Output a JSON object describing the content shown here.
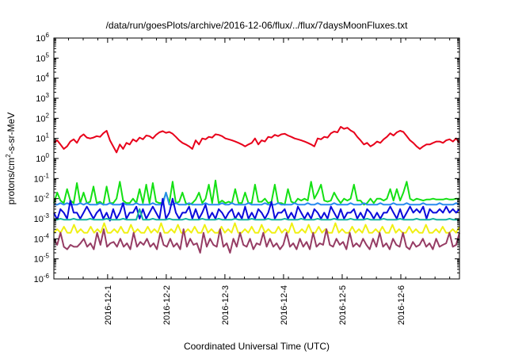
{
  "chart_data": {
    "type": "line",
    "title": "/data/run/goesPlots/archive/2016-12-06/flux/../flux/7daysMoonFluxes.txt",
    "xlabel": "Coordinated Universal Time (UTC)",
    "ylabel_parts": [
      "protons/cm",
      "2",
      "-s-sr-MeV"
    ],
    "yscale": "log",
    "ylim": [
      1e-06,
      1000000.0
    ],
    "y_ticks": [
      {
        "base": "10",
        "exp": "-6"
      },
      {
        "base": "10",
        "exp": "-5"
      },
      {
        "base": "10",
        "exp": "-4"
      },
      {
        "base": "10",
        "exp": "-3"
      },
      {
        "base": "10",
        "exp": "-2"
      },
      {
        "base": "10",
        "exp": "-1"
      },
      {
        "base": "10",
        "exp": "0"
      },
      {
        "base": "10",
        "exp": "1"
      },
      {
        "base": "10",
        "exp": "2"
      },
      {
        "base": "10",
        "exp": "3"
      },
      {
        "base": "10",
        "exp": "4"
      },
      {
        "base": "10",
        "exp": "5"
      },
      {
        "base": "10",
        "exp": "6"
      }
    ],
    "x_range_days": [
      "2016-11-30T02:00",
      "2016-12-06T24:00"
    ],
    "x_ticks": [
      "2016-12-1",
      "2016-12-2",
      "2016-12-3",
      "2016-12-4",
      "2016-12-5",
      "2016-12-6"
    ],
    "grid": false,
    "x_start": "2016-11-30T02:00",
    "x_step_hours": 2,
    "series": [
      {
        "color": "#e8001a",
        "values": [
          6,
          8,
          5,
          3,
          4,
          7,
          9,
          6,
          12,
          16,
          11,
          10,
          11,
          13,
          12,
          18,
          24,
          8,
          4,
          2,
          5,
          3,
          6,
          5,
          9,
          7,
          11,
          9,
          14,
          13,
          10,
          15,
          20,
          23,
          19,
          21,
          17,
          12,
          8,
          6,
          5,
          4,
          3,
          8,
          5,
          10,
          9,
          12,
          11,
          16,
          15,
          13,
          10,
          9,
          8,
          7,
          6,
          5,
          4,
          5,
          6,
          10,
          5,
          8,
          7,
          12,
          11,
          15,
          13,
          16,
          17,
          14,
          12,
          10,
          9,
          8,
          7,
          6,
          5,
          4,
          10,
          9,
          12,
          11,
          18,
          22,
          20,
          38,
          30,
          34,
          25,
          20,
          12,
          8,
          5,
          6,
          4,
          5,
          7,
          6,
          9,
          12,
          18,
          14,
          20,
          24,
          21,
          13,
          8,
          6,
          4,
          3,
          4,
          5,
          5,
          6,
          7,
          7,
          6,
          8,
          9,
          7,
          10,
          6
        ]
      },
      {
        "color": "#14e014",
        "values": [
          0.006,
          0.02,
          0.008,
          0.006,
          0.03,
          0.008,
          0.006,
          0.06,
          0.006,
          0.02,
          0.006,
          0.007,
          0.04,
          0.006,
          0.007,
          0.005,
          0.04,
          0.006,
          0.006,
          0.01,
          0.07,
          0.008,
          0.006,
          0.006,
          0.01,
          0.006,
          0.03,
          0.006,
          0.05,
          0.006,
          0.06,
          0.007,
          0.006,
          0.006,
          0.02,
          0.006,
          0.07,
          0.006,
          0.007,
          0.02,
          0.006,
          0.005,
          0.006,
          0.009,
          0.02,
          0.006,
          0.01,
          0.05,
          0.006,
          0.08,
          0.006,
          0.008,
          0.006,
          0.007,
          0.006,
          0.03,
          0.006,
          0.006,
          0.02,
          0.006,
          0.006,
          0.05,
          0.007,
          0.007,
          0.01,
          0.006,
          0.007,
          0.05,
          0.006,
          0.006,
          0.005,
          0.03,
          0.007,
          0.006,
          0.01,
          0.008,
          0.01,
          0.008,
          0.07,
          0.01,
          0.02,
          0.05,
          0.008,
          0.007,
          0.008,
          0.02,
          0.01,
          0.006,
          0.01,
          0.008,
          0.01,
          0.05,
          0.008,
          0.008,
          0.005,
          0.006,
          0.01,
          0.006,
          0.01,
          0.01,
          0.008,
          0.01,
          0.03,
          0.008,
          0.03,
          0.008,
          0.02,
          0.07,
          0.01,
          0.008,
          0.01,
          0.009,
          0.008,
          0.009,
          0.009,
          0.01,
          0.009,
          0.009,
          0.009,
          0.01,
          0.009,
          0.009,
          0.01,
          0.01
        ]
      },
      {
        "color": "#2a8cf0",
        "values": [
          0.005,
          0.005,
          0.006,
          0.005,
          0.006,
          0.005,
          0.005,
          0.005,
          0.006,
          0.005,
          0.006,
          0.005,
          0.005,
          0.005,
          0.006,
          0.005,
          0.005,
          0.006,
          0.005,
          0.005,
          0.005,
          0.006,
          0.005,
          0.005,
          0.005,
          0.006,
          0.005,
          0.005,
          0.005,
          0.005,
          0.006,
          0.005,
          0.005,
          0.005,
          0.02,
          0.005,
          0.005,
          0.006,
          0.005,
          0.005,
          0.005,
          0.006,
          0.005,
          0.005,
          0.005,
          0.005,
          0.006,
          0.005,
          0.005,
          0.005,
          0.005,
          0.006,
          0.005,
          0.005,
          0.006,
          0.005,
          0.005,
          0.005,
          0.005,
          0.006,
          0.005,
          0.005,
          0.005,
          0.005,
          0.006,
          0.005,
          0.005,
          0.005,
          0.006,
          0.005,
          0.005,
          0.005,
          0.005,
          0.006,
          0.005,
          0.005,
          0.005,
          0.006,
          0.005,
          0.005,
          0.006,
          0.005,
          0.005,
          0.005,
          0.005,
          0.006,
          0.005,
          0.005,
          0.005,
          0.005,
          0.006,
          0.005,
          0.005,
          0.005,
          0.006,
          0.005,
          0.005,
          0.005,
          0.005,
          0.006,
          0.005,
          0.005,
          0.005,
          0.006,
          0.005,
          0.005,
          0.005,
          0.006,
          0.005,
          0.005,
          0.005,
          0.005,
          0.006,
          0.005,
          0.005,
          0.005,
          0.005,
          0.006,
          0.005,
          0.005,
          0.005,
          0.005,
          0.006,
          0.005
        ]
      },
      {
        "color": "#0a0adc",
        "values": [
          0.002,
          0.0009,
          0.003,
          0.002,
          0.001,
          0.008,
          0.002,
          0.002,
          0.001,
          0.002,
          0.004,
          0.002,
          0.001,
          0.002,
          0.003,
          0.001,
          0.002,
          0.0008,
          0.003,
          0.001,
          0.002,
          0.006,
          0.001,
          0.002,
          0.002,
          0.004,
          0.001,
          0.003,
          0.001,
          0.002,
          0.004,
          0.002,
          0.001,
          0.01,
          0.001,
          0.002,
          0.01,
          0.002,
          0.001,
          0.002,
          0.002,
          0.004,
          0.001,
          0.003,
          0.001,
          0.002,
          0.005,
          0.001,
          0.002,
          0.001,
          0.003,
          0.002,
          0.001,
          0.002,
          0.003,
          0.001,
          0.002,
          0.001,
          0.004,
          0.001,
          0.002,
          0.001,
          0.003,
          0.002,
          0.001,
          0.002,
          0.007,
          0.001,
          0.002,
          0.002,
          0.003,
          0.001,
          0.002,
          0.001,
          0.004,
          0.002,
          0.001,
          0.002,
          0.001,
          0.003,
          0.002,
          0.001,
          0.002,
          0.001,
          0.004,
          0.002,
          0.001,
          0.003,
          0.001,
          0.002,
          0.002,
          0.003,
          0.001,
          0.002,
          0.001,
          0.003,
          0.002,
          0.001,
          0.002,
          0.001,
          0.002,
          0.002,
          0.004,
          0.002,
          0.001,
          0.003,
          0.001,
          0.002,
          0.004,
          0.002,
          0.003,
          0.002,
          0.004,
          0.001,
          0.003,
          0.002,
          0.002,
          0.003,
          0.002,
          0.004,
          0.002,
          0.003,
          0.002,
          0.003
        ]
      },
      {
        "color": "#14b4a0",
        "values": [
          0.0009,
          0.0009,
          0.001,
          0.0009,
          0.0009,
          0.0009,
          0.001,
          0.0009,
          0.0009,
          0.0009,
          0.0009,
          0.001,
          0.0009,
          0.0009,
          0.0009,
          0.0009,
          0.001,
          0.0009,
          0.0009,
          0.0009,
          0.0009,
          0.001,
          0.0009,
          0.0009,
          0.0009,
          0.0009,
          0.003,
          0.0009,
          0.0009,
          0.0009,
          0.001,
          0.0009,
          0.0009,
          0.0009,
          0.0009,
          0.001,
          0.0009,
          0.0009,
          0.0009,
          0.0009,
          0.001,
          0.0009,
          0.0009,
          0.0009,
          0.0009,
          0.001,
          0.0009,
          0.0009,
          0.0009,
          0.0009,
          0.001,
          0.0009,
          0.0009,
          0.0009,
          0.0009,
          0.001,
          0.0009,
          0.0009,
          0.0009,
          0.0009,
          0.001,
          0.0009,
          0.0009,
          0.0009,
          0.0009,
          0.001,
          0.0009,
          0.0009,
          0.0009,
          0.0009,
          0.001,
          0.0009,
          0.0009,
          0.0009,
          0.0009,
          0.001,
          0.0009,
          0.0009,
          0.0009,
          0.0009,
          0.001,
          0.0009,
          0.0009,
          0.0009,
          0.0009,
          0.001,
          0.0009,
          0.0009,
          0.0009,
          0.0009,
          0.001,
          0.0009,
          0.0009,
          0.0009,
          0.0009,
          0.001,
          0.0009,
          0.0009,
          0.0009,
          0.0009,
          0.001,
          0.0009,
          0.0009,
          0.0009,
          0.0009,
          0.001,
          0.0009,
          0.0009,
          0.0009,
          0.0009,
          0.001,
          0.0009,
          0.0009,
          0.0009,
          0.0009,
          0.001,
          0.0009,
          0.0009,
          0.0009,
          0.0009,
          0.001,
          0.0009,
          0.0009,
          0.0009
        ]
      },
      {
        "color": "#f0f014",
        "values": [
          0.0002,
          0.0003,
          0.0002,
          0.0004,
          0.0002,
          0.0002,
          0.0005,
          0.0002,
          0.0003,
          0.0002,
          0.0002,
          0.0004,
          0.0002,
          0.0003,
          0.0002,
          0.0006,
          0.0002,
          0.0002,
          0.0003,
          0.0002,
          0.0004,
          0.0002,
          0.0002,
          0.0005,
          0.0002,
          0.0003,
          0.0002,
          0.0002,
          0.0004,
          0.0002,
          0.0003,
          0.0002,
          0.0006,
          0.0002,
          0.0002,
          0.0003,
          0.0002,
          0.0005,
          0.0002,
          0.0002,
          0.0003,
          0.0002,
          0.0004,
          0.0002,
          0.0002,
          0.0005,
          0.0002,
          0.0003,
          0.0002,
          0.0002,
          0.0004,
          0.0002,
          0.0003,
          0.0002,
          0.0006,
          0.0002,
          0.0002,
          0.0003,
          0.0002,
          0.0004,
          0.0002,
          0.0002,
          0.0005,
          0.0002,
          0.0003,
          0.0002,
          0.0002,
          0.0004,
          0.0002,
          0.0003,
          0.0002,
          0.0006,
          0.0002,
          0.0002,
          0.0003,
          0.0002,
          0.0005,
          0.0002,
          0.0002,
          0.0004,
          0.0002,
          0.0003,
          0.0002,
          0.0002,
          0.0006,
          0.0002,
          0.0003,
          0.0002,
          0.0002,
          0.0004,
          0.0002,
          0.0003,
          0.0002,
          0.0005,
          0.0002,
          0.0002,
          0.0003,
          0.0002,
          0.0004,
          0.0002,
          0.0002,
          0.0005,
          0.0002,
          0.0003,
          0.0002,
          0.0002,
          0.0004,
          0.0002,
          0.0003,
          0.0002,
          0.0002,
          0.0005,
          0.0002,
          0.0002,
          0.0003,
          0.0002,
          0.0004,
          0.0002,
          0.0002,
          0.0003,
          0.0002,
          0.0004
        ]
      },
      {
        "color": "#963c64",
        "values": [
          0.0001,
          5e-05,
          0.0002,
          4e-05,
          3e-05,
          5e-05,
          4e-05,
          4e-05,
          6e-05,
          0.0001,
          4e-05,
          6e-05,
          3e-05,
          0.0002,
          5e-05,
          0.0003,
          4e-05,
          6e-05,
          7e-05,
          4e-05,
          0.0001,
          4e-05,
          6e-05,
          3e-05,
          0.0002,
          4e-05,
          7e-05,
          5e-05,
          0.0001,
          4e-05,
          6e-05,
          3e-05,
          0.0002,
          5e-05,
          4e-05,
          0.0001,
          4e-05,
          6e-05,
          3e-05,
          0.0003,
          4e-05,
          0.0001,
          5e-05,
          6e-05,
          2e-05,
          0.0002,
          4e-05,
          0.0001,
          5e-05,
          4e-05,
          0.0003,
          4e-05,
          6e-05,
          2e-05,
          0.0001,
          4e-05,
          0.0002,
          5e-05,
          4e-05,
          0.0001,
          3e-05,
          6e-05,
          5e-05,
          0.0002,
          4e-05,
          0.0001,
          4e-05,
          6e-05,
          3e-05,
          5e-05,
          0.0002,
          4e-05,
          6e-05,
          3e-05,
          0.0001,
          4e-05,
          7e-05,
          3e-05,
          0.0002,
          4e-05,
          6e-05,
          5e-05,
          0.0003,
          5e-05,
          4e-05,
          0.0001,
          5e-05,
          7e-05,
          3e-05,
          0.0002,
          4e-05,
          6e-05,
          4e-05,
          0.0001,
          5e-05,
          3e-05,
          0.0001,
          4e-05,
          0.0002,
          4e-05,
          6e-05,
          3e-05,
          0.0001,
          5e-05,
          4e-05,
          0.0002,
          4e-05,
          3e-05,
          7e-05,
          4e-05,
          5e-05,
          0.0001,
          4e-05,
          6e-05,
          3e-05,
          0.0001,
          4e-05,
          5e-05,
          6e-05,
          0.0002,
          4e-05,
          5e-05,
          0.0002
        ]
      }
    ]
  }
}
